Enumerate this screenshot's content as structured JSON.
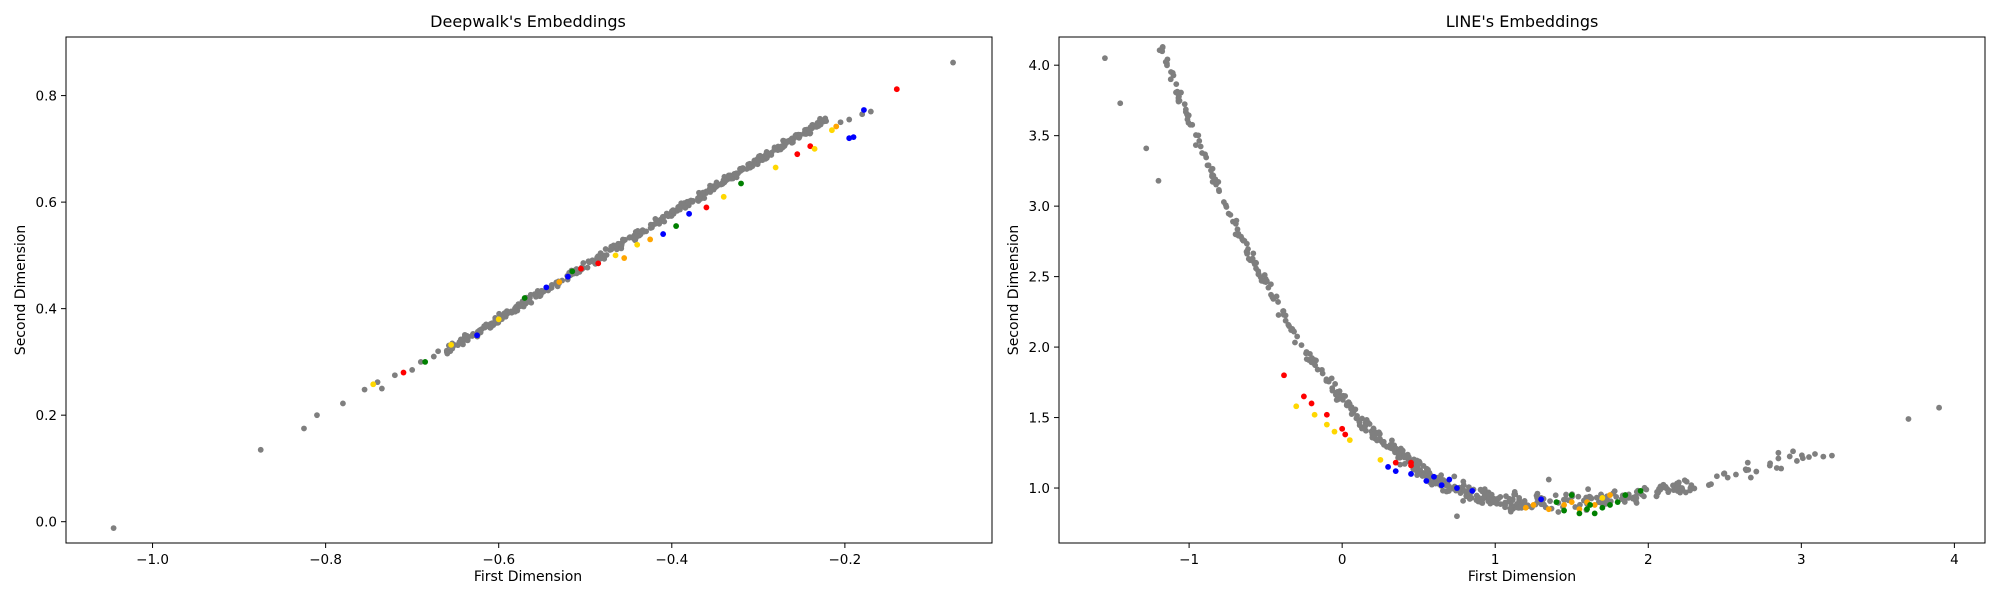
{
  "colors": {
    "gray": "#7f7f7f",
    "red": "#ff0000",
    "blue": "#0000ff",
    "green": "#008000",
    "yellow": "#ffd700",
    "orange": "#ffa500"
  },
  "chart_data": [
    {
      "type": "scatter",
      "title": "Deepwalk's Embeddings",
      "xlabel": "First Dimension",
      "ylabel": "Second Dimension",
      "xlim": [
        -1.1,
        -0.03
      ],
      "ylim": [
        -0.04,
        0.91
      ],
      "xticks": [
        -1.0,
        -0.8,
        -0.6,
        -0.4,
        -0.2
      ],
      "xtick_labels": [
        "−1.0",
        "−0.8",
        "−0.6",
        "−0.4",
        "−0.2"
      ],
      "yticks": [
        0.0,
        0.2,
        0.4,
        0.6,
        0.8
      ],
      "ytick_labels": [
        "0.0",
        "0.2",
        "0.4",
        "0.6",
        "0.8"
      ],
      "grid": false,
      "bulk": {
        "color": "gray",
        "x_range": [
          -0.66,
          -0.22
        ],
        "relation": "linear",
        "slope": 0.99,
        "intercept": 0.975,
        "scatter": 0.006,
        "count": 420
      },
      "points": [
        {
          "x": -1.045,
          "y": -0.012,
          "c": "gray"
        },
        {
          "x": -0.875,
          "y": 0.135,
          "c": "gray"
        },
        {
          "x": -0.825,
          "y": 0.175,
          "c": "gray"
        },
        {
          "x": -0.81,
          "y": 0.2,
          "c": "gray"
        },
        {
          "x": -0.78,
          "y": 0.222,
          "c": "gray"
        },
        {
          "x": -0.755,
          "y": 0.248,
          "c": "gray"
        },
        {
          "x": -0.74,
          "y": 0.262,
          "c": "gray"
        },
        {
          "x": -0.735,
          "y": 0.25,
          "c": "gray"
        },
        {
          "x": -0.72,
          "y": 0.275,
          "c": "gray"
        },
        {
          "x": -0.7,
          "y": 0.285,
          "c": "gray"
        },
        {
          "x": -0.69,
          "y": 0.3,
          "c": "gray"
        },
        {
          "x": -0.675,
          "y": 0.31,
          "c": "gray"
        },
        {
          "x": -0.67,
          "y": 0.32,
          "c": "gray"
        },
        {
          "x": -0.205,
          "y": 0.75,
          "c": "gray"
        },
        {
          "x": -0.195,
          "y": 0.755,
          "c": "gray"
        },
        {
          "x": -0.18,
          "y": 0.765,
          "c": "gray"
        },
        {
          "x": -0.17,
          "y": 0.77,
          "c": "gray"
        },
        {
          "x": -0.075,
          "y": 0.862,
          "c": "gray"
        },
        {
          "x": -0.745,
          "y": 0.258,
          "c": "yellow"
        },
        {
          "x": -0.71,
          "y": 0.28,
          "c": "red"
        },
        {
          "x": -0.685,
          "y": 0.3,
          "c": "green"
        },
        {
          "x": -0.655,
          "y": 0.332,
          "c": "yellow"
        },
        {
          "x": -0.625,
          "y": 0.35,
          "c": "blue"
        },
        {
          "x": -0.6,
          "y": 0.38,
          "c": "yellow"
        },
        {
          "x": -0.57,
          "y": 0.42,
          "c": "green"
        },
        {
          "x": -0.545,
          "y": 0.44,
          "c": "blue"
        },
        {
          "x": -0.53,
          "y": 0.45,
          "c": "orange"
        },
        {
          "x": -0.52,
          "y": 0.46,
          "c": "blue"
        },
        {
          "x": -0.515,
          "y": 0.47,
          "c": "green"
        },
        {
          "x": -0.505,
          "y": 0.475,
          "c": "red"
        },
        {
          "x": -0.485,
          "y": 0.485,
          "c": "red"
        },
        {
          "x": -0.465,
          "y": 0.5,
          "c": "yellow"
        },
        {
          "x": -0.455,
          "y": 0.495,
          "c": "orange"
        },
        {
          "x": -0.44,
          "y": 0.52,
          "c": "yellow"
        },
        {
          "x": -0.425,
          "y": 0.53,
          "c": "orange"
        },
        {
          "x": -0.41,
          "y": 0.54,
          "c": "blue"
        },
        {
          "x": -0.395,
          "y": 0.555,
          "c": "green"
        },
        {
          "x": -0.38,
          "y": 0.578,
          "c": "blue"
        },
        {
          "x": -0.36,
          "y": 0.59,
          "c": "red"
        },
        {
          "x": -0.34,
          "y": 0.61,
          "c": "yellow"
        },
        {
          "x": -0.32,
          "y": 0.635,
          "c": "green"
        },
        {
          "x": -0.28,
          "y": 0.665,
          "c": "yellow"
        },
        {
          "x": -0.255,
          "y": 0.69,
          "c": "red"
        },
        {
          "x": -0.24,
          "y": 0.705,
          "c": "red"
        },
        {
          "x": -0.235,
          "y": 0.7,
          "c": "yellow"
        },
        {
          "x": -0.215,
          "y": 0.735,
          "c": "yellow"
        },
        {
          "x": -0.21,
          "y": 0.742,
          "c": "orange"
        },
        {
          "x": -0.195,
          "y": 0.72,
          "c": "blue"
        },
        {
          "x": -0.19,
          "y": 0.722,
          "c": "blue"
        },
        {
          "x": -0.178,
          "y": 0.773,
          "c": "blue"
        },
        {
          "x": -0.14,
          "y": 0.812,
          "c": "red"
        }
      ]
    },
    {
      "type": "scatter",
      "title": "LINE's Embeddings",
      "xlabel": "First Dimension",
      "ylabel": "Second Dimension",
      "xlim": [
        -1.85,
        4.2
      ],
      "ylim": [
        0.61,
        4.2
      ],
      "xticks": [
        -1,
        0,
        1,
        2,
        3,
        4
      ],
      "xtick_labels": [
        "−1",
        "0",
        "1",
        "2",
        "3",
        "4"
      ],
      "yticks": [
        1.0,
        1.5,
        2.0,
        2.5,
        3.0,
        3.5,
        4.0
      ],
      "ytick_labels": [
        "1.0",
        "1.5",
        "2.0",
        "2.5",
        "3.0",
        "3.5",
        "4.0"
      ],
      "grid": false,
      "bulk": {
        "color": "gray",
        "relation": "u-curve",
        "segments": [
          {
            "x_range": [
              -1.2,
              0.0
            ],
            "count": 150
          },
          {
            "x_range": [
              0.0,
              1.2
            ],
            "count": 230
          },
          {
            "x_range": [
              1.2,
              2.3
            ],
            "count": 120
          },
          {
            "x_range": [
              2.3,
              3.2
            ],
            "count": 25
          }
        ],
        "scatter": 0.05
      },
      "points": [
        {
          "x": -1.55,
          "y": 4.05,
          "c": "gray"
        },
        {
          "x": -1.45,
          "y": 3.73,
          "c": "gray"
        },
        {
          "x": -1.28,
          "y": 3.41,
          "c": "gray"
        },
        {
          "x": -1.2,
          "y": 3.18,
          "c": "gray"
        },
        {
          "x": 0.75,
          "y": 0.8,
          "c": "gray"
        },
        {
          "x": 1.35,
          "y": 1.06,
          "c": "gray"
        },
        {
          "x": 2.65,
          "y": 1.18,
          "c": "gray"
        },
        {
          "x": 2.85,
          "y": 1.25,
          "c": "gray"
        },
        {
          "x": 3.05,
          "y": 1.22,
          "c": "gray"
        },
        {
          "x": 3.2,
          "y": 1.23,
          "c": "gray"
        },
        {
          "x": 3.7,
          "y": 1.49,
          "c": "gray"
        },
        {
          "x": 3.9,
          "y": 1.57,
          "c": "gray"
        },
        {
          "x": -0.38,
          "y": 1.8,
          "c": "red"
        },
        {
          "x": -0.25,
          "y": 1.65,
          "c": "red"
        },
        {
          "x": -0.2,
          "y": 1.6,
          "c": "red"
        },
        {
          "x": -0.1,
          "y": 1.52,
          "c": "red"
        },
        {
          "x": 0.0,
          "y": 1.42,
          "c": "red"
        },
        {
          "x": 0.02,
          "y": 1.38,
          "c": "red"
        },
        {
          "x": 0.35,
          "y": 1.18,
          "c": "red"
        },
        {
          "x": 0.45,
          "y": 1.16,
          "c": "red"
        },
        {
          "x": 0.45,
          "y": 1.18,
          "c": "red"
        },
        {
          "x": -0.3,
          "y": 1.58,
          "c": "yellow"
        },
        {
          "x": -0.18,
          "y": 1.52,
          "c": "yellow"
        },
        {
          "x": -0.1,
          "y": 1.45,
          "c": "yellow"
        },
        {
          "x": -0.05,
          "y": 1.4,
          "c": "yellow"
        },
        {
          "x": 0.05,
          "y": 1.34,
          "c": "yellow"
        },
        {
          "x": 0.25,
          "y": 1.2,
          "c": "yellow"
        },
        {
          "x": 1.7,
          "y": 0.93,
          "c": "yellow"
        },
        {
          "x": 0.3,
          "y": 1.15,
          "c": "blue"
        },
        {
          "x": 0.35,
          "y": 1.12,
          "c": "blue"
        },
        {
          "x": 0.45,
          "y": 1.1,
          "c": "blue"
        },
        {
          "x": 0.55,
          "y": 1.05,
          "c": "blue"
        },
        {
          "x": 0.6,
          "y": 1.08,
          "c": "blue"
        },
        {
          "x": 0.65,
          "y": 1.02,
          "c": "blue"
        },
        {
          "x": 0.7,
          "y": 1.06,
          "c": "blue"
        },
        {
          "x": 0.75,
          "y": 1.0,
          "c": "blue"
        },
        {
          "x": 0.85,
          "y": 0.98,
          "c": "blue"
        },
        {
          "x": 1.3,
          "y": 0.92,
          "c": "blue"
        },
        {
          "x": 1.2,
          "y": 0.86,
          "c": "orange"
        },
        {
          "x": 1.25,
          "y": 0.88,
          "c": "orange"
        },
        {
          "x": 1.35,
          "y": 0.85,
          "c": "orange"
        },
        {
          "x": 1.45,
          "y": 0.88,
          "c": "orange"
        },
        {
          "x": 1.5,
          "y": 0.9,
          "c": "orange"
        },
        {
          "x": 1.55,
          "y": 0.85,
          "c": "orange"
        },
        {
          "x": 1.6,
          "y": 0.9,
          "c": "orange"
        },
        {
          "x": 1.65,
          "y": 0.88,
          "c": "orange"
        },
        {
          "x": 1.75,
          "y": 0.95,
          "c": "orange"
        },
        {
          "x": 1.4,
          "y": 0.9,
          "c": "green"
        },
        {
          "x": 1.45,
          "y": 0.84,
          "c": "green"
        },
        {
          "x": 1.5,
          "y": 0.95,
          "c": "green"
        },
        {
          "x": 1.55,
          "y": 0.82,
          "c": "green"
        },
        {
          "x": 1.6,
          "y": 0.85,
          "c": "green"
        },
        {
          "x": 1.62,
          "y": 0.88,
          "c": "green"
        },
        {
          "x": 1.65,
          "y": 0.82,
          "c": "green"
        },
        {
          "x": 1.7,
          "y": 0.86,
          "c": "green"
        },
        {
          "x": 1.75,
          "y": 0.88,
          "c": "green"
        },
        {
          "x": 1.8,
          "y": 0.9,
          "c": "green"
        },
        {
          "x": 1.85,
          "y": 0.95,
          "c": "green"
        },
        {
          "x": 1.95,
          "y": 0.98,
          "c": "green"
        }
      ]
    }
  ]
}
